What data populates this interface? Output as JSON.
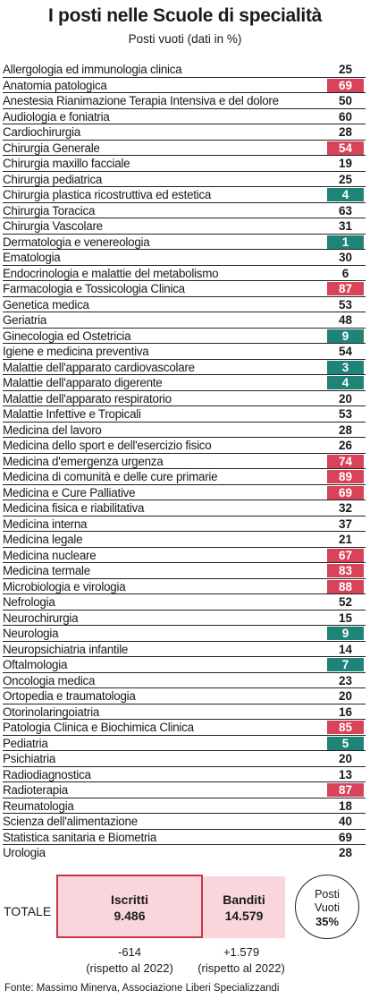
{
  "chart_data": {
    "type": "table",
    "title": "I posti nelle Scuole di specialità",
    "subtitle": "Posti vuoti (dati in %)",
    "highlight_colors": {
      "high": "#d9435a",
      "low": "#1f8478"
    },
    "rows": [
      {
        "label": "Allergologia ed immunologia clinica",
        "value": 25,
        "highlight": "none"
      },
      {
        "label": "Anatomia patologica",
        "value": 69,
        "highlight": "red"
      },
      {
        "label": "Anestesia Rianimazione Terapia Intensiva e del dolore",
        "value": 50,
        "highlight": "none"
      },
      {
        "label": "Audiologia e foniatria",
        "value": 60,
        "highlight": "none"
      },
      {
        "label": "Cardiochirurgia",
        "value": 28,
        "highlight": "none"
      },
      {
        "label": "Chirurgia Generale",
        "value": 54,
        "highlight": "red"
      },
      {
        "label": "Chirurgia maxillo facciale",
        "value": 19,
        "highlight": "none"
      },
      {
        "label": "Chirurgia pediatrica",
        "value": 25,
        "highlight": "none"
      },
      {
        "label": "Chirurgia plastica ricostruttiva ed estetica",
        "value": 4,
        "highlight": "green"
      },
      {
        "label": "Chirurgia Toracica",
        "value": 63,
        "highlight": "none"
      },
      {
        "label": "Chirurgia Vascolare",
        "value": 31,
        "highlight": "none"
      },
      {
        "label": "Dermatologia e venereologia",
        "value": 1,
        "highlight": "green"
      },
      {
        "label": "Ematologia",
        "value": 30,
        "highlight": "none"
      },
      {
        "label": "Endocrinologia e malattie del metabolismo",
        "value": 6,
        "highlight": "none"
      },
      {
        "label": "Farmacologia e Tossicologia Clinica",
        "value": 87,
        "highlight": "red"
      },
      {
        "label": "Genetica medica",
        "value": 53,
        "highlight": "none"
      },
      {
        "label": "Geriatria",
        "value": 48,
        "highlight": "none"
      },
      {
        "label": "Ginecologia ed Ostetricia",
        "value": 9,
        "highlight": "green"
      },
      {
        "label": "Igiene e medicina preventiva",
        "value": 54,
        "highlight": "none"
      },
      {
        "label": "Malattie dell'apparato cardiovascolare",
        "value": 3,
        "highlight": "green"
      },
      {
        "label": "Malattie dell'apparato digerente",
        "value": 4,
        "highlight": "green"
      },
      {
        "label": "Malattie dell'apparato respiratorio",
        "value": 20,
        "highlight": "none"
      },
      {
        "label": "Malattie Infettive e Tropicali",
        "value": 53,
        "highlight": "none"
      },
      {
        "label": "Medicina del lavoro",
        "value": 28,
        "highlight": "none"
      },
      {
        "label": "Medicina dello sport e dell'esercizio fisico",
        "value": 26,
        "highlight": "none"
      },
      {
        "label": "Medicina d'emergenza urgenza",
        "value": 74,
        "highlight": "red"
      },
      {
        "label": "Medicina di comunità e delle cure primarie",
        "value": 89,
        "highlight": "red"
      },
      {
        "label": "Medicina e Cure Palliative",
        "value": 69,
        "highlight": "red"
      },
      {
        "label": "Medicina fisica e riabilitativa",
        "value": 32,
        "highlight": "none"
      },
      {
        "label": "Medicina interna",
        "value": 37,
        "highlight": "none"
      },
      {
        "label": "Medicina legale",
        "value": 21,
        "highlight": "none"
      },
      {
        "label": "Medicina nucleare",
        "value": 67,
        "highlight": "red"
      },
      {
        "label": "Medicina termale",
        "value": 83,
        "highlight": "red"
      },
      {
        "label": "Microbiologia e virologia",
        "value": 88,
        "highlight": "red"
      },
      {
        "label": "Nefrologia",
        "value": 52,
        "highlight": "none"
      },
      {
        "label": "Neurochirurgia",
        "value": 15,
        "highlight": "none"
      },
      {
        "label": "Neurologia",
        "value": 9,
        "highlight": "green"
      },
      {
        "label": "Neuropsichiatria infantile",
        "value": 14,
        "highlight": "none"
      },
      {
        "label": "Oftalmologia",
        "value": 7,
        "highlight": "green"
      },
      {
        "label": "Oncologia medica",
        "value": 23,
        "highlight": "none"
      },
      {
        "label": "Ortopedia e traumatologia",
        "value": 20,
        "highlight": "none"
      },
      {
        "label": "Otorinolaringoiatria",
        "value": 16,
        "highlight": "none"
      },
      {
        "label": "Patologia Clinica e Biochimica Clinica",
        "value": 85,
        "highlight": "red"
      },
      {
        "label": "Pediatria",
        "value": 5,
        "highlight": "green"
      },
      {
        "label": "Psichiatria",
        "value": 20,
        "highlight": "none"
      },
      {
        "label": "Radiodiagnostica",
        "value": 13,
        "highlight": "none"
      },
      {
        "label": "Radioterapia",
        "value": 87,
        "highlight": "red"
      },
      {
        "label": "Reumatologia",
        "value": 18,
        "highlight": "none"
      },
      {
        "label": "Scienza dell'alimentazione",
        "value": 40,
        "highlight": "none"
      },
      {
        "label": "Statistica sanitaria e Biometria",
        "value": 69,
        "highlight": "none"
      },
      {
        "label": "Urologia",
        "value": 28,
        "highlight": "none"
      }
    ],
    "totale": {
      "label": "TOTALE",
      "iscritti": {
        "label": "Iscritti",
        "value": "9.486",
        "delta": "-614",
        "delta_note": "(rispetto al 2022)"
      },
      "banditi": {
        "label": "Banditi",
        "value": "14.579",
        "delta": "+1.579",
        "delta_note": "(rispetto al 2022)"
      },
      "posti_vuoti": {
        "line1": "Posti",
        "line2": "Vuoti",
        "value": "35%"
      }
    },
    "source": "Fonte: Massimo Minerva, Associazione Liberi Specializzandi"
  }
}
